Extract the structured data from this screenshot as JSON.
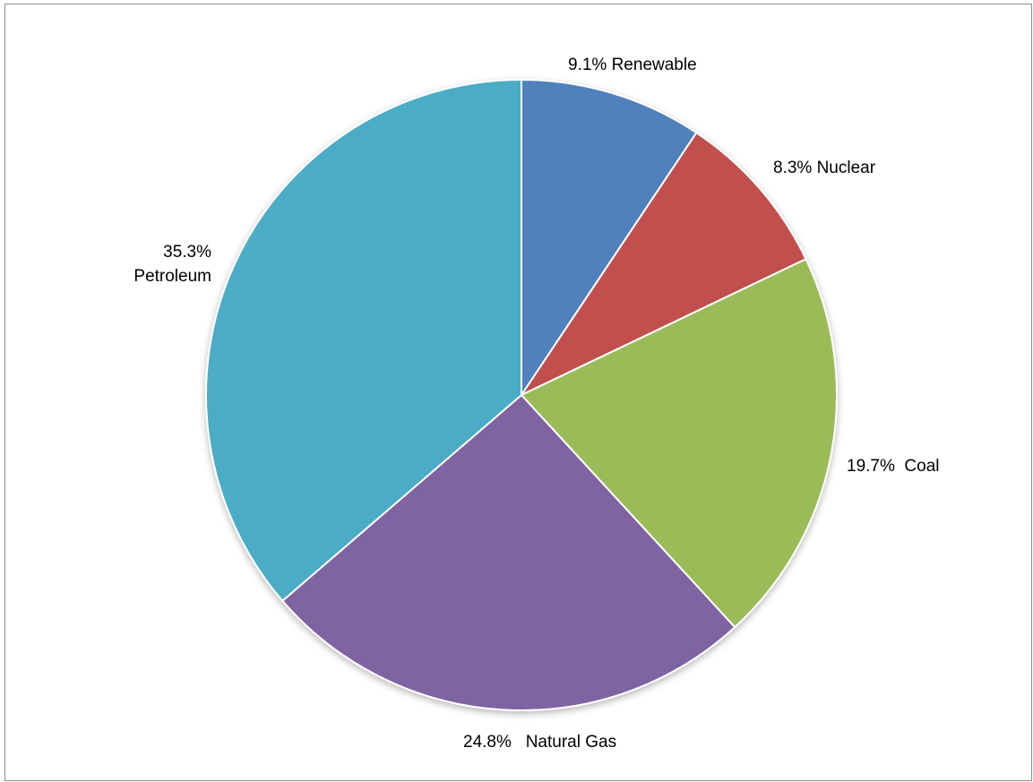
{
  "chart_data": {
    "type": "pie",
    "slices": [
      {
        "label": "Renewable",
        "value": 9.1,
        "value_text": "9.1%",
        "color": "#4F81BD"
      },
      {
        "label": "Nuclear",
        "value": 8.3,
        "value_text": "8.3%",
        "color": "#C0504D"
      },
      {
        "label": "Coal",
        "value": 19.7,
        "value_text": "19.7%",
        "color": "#9BBB59"
      },
      {
        "label": "Natural Gas",
        "value": 24.8,
        "value_text": "24.8%",
        "color": "#8064A2"
      },
      {
        "label": "Petroleum",
        "value": 35.3,
        "value_text": "35.3%",
        "color": "#4BACC6"
      }
    ],
    "start_angle": "12 o'clock",
    "direction": "clockwise",
    "legend": "none"
  }
}
